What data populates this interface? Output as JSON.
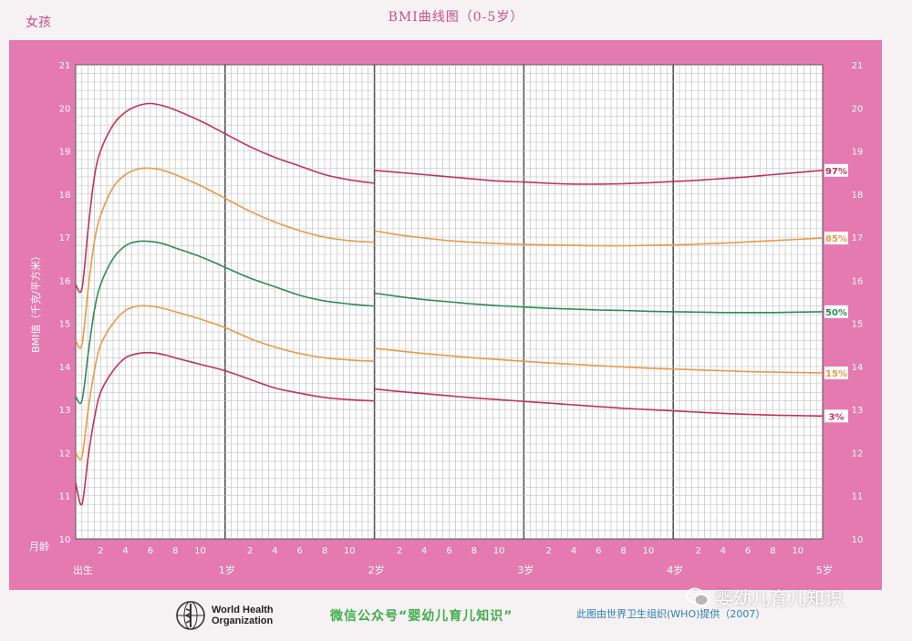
{
  "header": {
    "title": "BMI曲线图（0-5岁）",
    "gender_label": "女孩"
  },
  "footer": {
    "who_line1": "World Health",
    "who_line2": "Organization",
    "wechat_text": "微信公众号“婴幼儿育儿知识”",
    "source_text": "此图由世界卫生组织(WHO)提供（2007）",
    "watermark_text": "婴幼儿育儿知识"
  },
  "chart_data": {
    "type": "line",
    "ylabel": "BMI值（千克/平方米）",
    "ylim": [
      10,
      21
    ],
    "yticks": [
      10,
      11,
      12,
      13,
      14,
      15,
      16,
      17,
      18,
      19,
      20,
      21
    ],
    "xlim_months": [
      0,
      60
    ],
    "x_label_month_axis": "月龄",
    "month_tick_labels": [
      "2",
      "4",
      "6",
      "8",
      "10"
    ],
    "year_labels": [
      {
        "label": "出生",
        "month": 0
      },
      {
        "label": "1岁",
        "month": 12
      },
      {
        "label": "2岁",
        "month": 24
      },
      {
        "label": "3岁",
        "month": 36
      },
      {
        "label": "4岁",
        "month": 48
      },
      {
        "label": "5岁",
        "month": 60
      }
    ],
    "series": [
      {
        "name": "97%",
        "color": "#c2325a",
        "segments": [
          {
            "x": [
              0,
              0.5,
              1,
              1.5,
              2,
              3,
              4,
              5,
              6,
              7,
              8,
              10,
              12,
              14,
              16,
              18,
              20,
              22,
              24
            ],
            "y": [
              15.9,
              15.8,
              17.2,
              18.4,
              19.0,
              19.6,
              19.9,
              20.05,
              20.1,
              20.05,
              19.95,
              19.7,
              19.4,
              19.1,
              18.85,
              18.65,
              18.45,
              18.33,
              18.25
            ]
          },
          {
            "x": [
              24,
              26,
              28,
              30,
              32,
              34,
              36,
              38,
              40,
              42,
              44,
              46,
              48,
              50,
              52,
              54,
              56,
              58,
              60
            ],
            "y": [
              18.55,
              18.5,
              18.45,
              18.4,
              18.35,
              18.3,
              18.28,
              18.25,
              18.23,
              18.23,
              18.24,
              18.26,
              18.29,
              18.32,
              18.36,
              18.4,
              18.45,
              18.5,
              18.55
            ]
          }
        ]
      },
      {
        "name": "85%",
        "color": "#e99a45",
        "segments": [
          {
            "x": [
              0,
              0.5,
              1,
              1.5,
              2,
              3,
              4,
              5,
              6,
              7,
              8,
              10,
              12,
              14,
              16,
              18,
              20,
              22,
              24
            ],
            "y": [
              14.6,
              14.5,
              15.8,
              16.9,
              17.5,
              18.15,
              18.45,
              18.58,
              18.6,
              18.55,
              18.45,
              18.2,
              17.9,
              17.6,
              17.35,
              17.15,
              17.0,
              16.92,
              16.88
            ]
          },
          {
            "x": [
              24,
              26,
              28,
              30,
              32,
              34,
              36,
              38,
              40,
              42,
              44,
              46,
              48,
              50,
              52,
              54,
              56,
              58,
              60
            ],
            "y": [
              17.15,
              17.05,
              16.98,
              16.92,
              16.88,
              16.85,
              16.83,
              16.82,
              16.81,
              16.8,
              16.8,
              16.81,
              16.82,
              16.84,
              16.86,
              16.89,
              16.92,
              16.95,
              16.98
            ]
          }
        ]
      },
      {
        "name": "50%",
        "color": "#2f8a5a",
        "segments": [
          {
            "x": [
              0,
              0.5,
              1,
              1.5,
              2,
              3,
              4,
              5,
              6,
              7,
              8,
              10,
              12,
              14,
              16,
              18,
              20,
              22,
              24
            ],
            "y": [
              13.3,
              13.2,
              14.3,
              15.3,
              15.9,
              16.5,
              16.8,
              16.9,
              16.9,
              16.85,
              16.75,
              16.55,
              16.3,
              16.05,
              15.85,
              15.65,
              15.52,
              15.45,
              15.4
            ]
          },
          {
            "x": [
              24,
              26,
              28,
              30,
              32,
              34,
              36,
              38,
              40,
              42,
              44,
              46,
              48,
              50,
              52,
              54,
              56,
              58,
              60
            ],
            "y": [
              15.7,
              15.62,
              15.55,
              15.5,
              15.45,
              15.41,
              15.38,
              15.35,
              15.33,
              15.31,
              15.3,
              15.28,
              15.27,
              15.26,
              15.25,
              15.25,
              15.25,
              15.26,
              15.27
            ]
          }
        ]
      },
      {
        "name": "15%",
        "color": "#e99a45",
        "segments": [
          {
            "x": [
              0,
              0.5,
              1,
              1.5,
              2,
              3,
              4,
              5,
              6,
              7,
              8,
              10,
              12,
              14,
              16,
              18,
              20,
              22,
              24
            ],
            "y": [
              12.0,
              11.9,
              13.0,
              13.9,
              14.5,
              15.0,
              15.3,
              15.4,
              15.4,
              15.35,
              15.27,
              15.1,
              14.9,
              14.65,
              14.45,
              14.3,
              14.2,
              14.15,
              14.12
            ]
          },
          {
            "x": [
              24,
              26,
              28,
              30,
              32,
              34,
              36,
              38,
              40,
              42,
              44,
              46,
              48,
              50,
              52,
              54,
              56,
              58,
              60
            ],
            "y": [
              14.42,
              14.36,
              14.3,
              14.25,
              14.2,
              14.16,
              14.12,
              14.08,
              14.05,
              14.02,
              13.99,
              13.96,
              13.94,
              13.92,
              13.9,
              13.88,
              13.87,
              13.86,
              13.85
            ]
          }
        ]
      },
      {
        "name": "3%",
        "color": "#c2325a",
        "segments": [
          {
            "x": [
              0,
              0.5,
              1,
              1.5,
              2,
              3,
              4,
              5,
              6,
              7,
              8,
              10,
              12,
              14,
              16,
              18,
              20,
              22,
              24
            ],
            "y": [
              11.3,
              10.8,
              11.9,
              12.8,
              13.4,
              13.9,
              14.2,
              14.3,
              14.32,
              14.28,
              14.2,
              14.05,
              13.9,
              13.7,
              13.5,
              13.38,
              13.28,
              13.23,
              13.2
            ]
          },
          {
            "x": [
              24,
              26,
              28,
              30,
              32,
              34,
              36,
              38,
              40,
              42,
              44,
              46,
              48,
              50,
              52,
              54,
              56,
              58,
              60
            ],
            "y": [
              13.48,
              13.42,
              13.37,
              13.32,
              13.27,
              13.23,
              13.19,
              13.15,
              13.11,
              13.07,
              13.03,
              13.0,
              12.97,
              12.94,
              12.91,
              12.89,
              12.87,
              12.86,
              12.85
            ]
          }
        ]
      }
    ],
    "grid": true
  }
}
